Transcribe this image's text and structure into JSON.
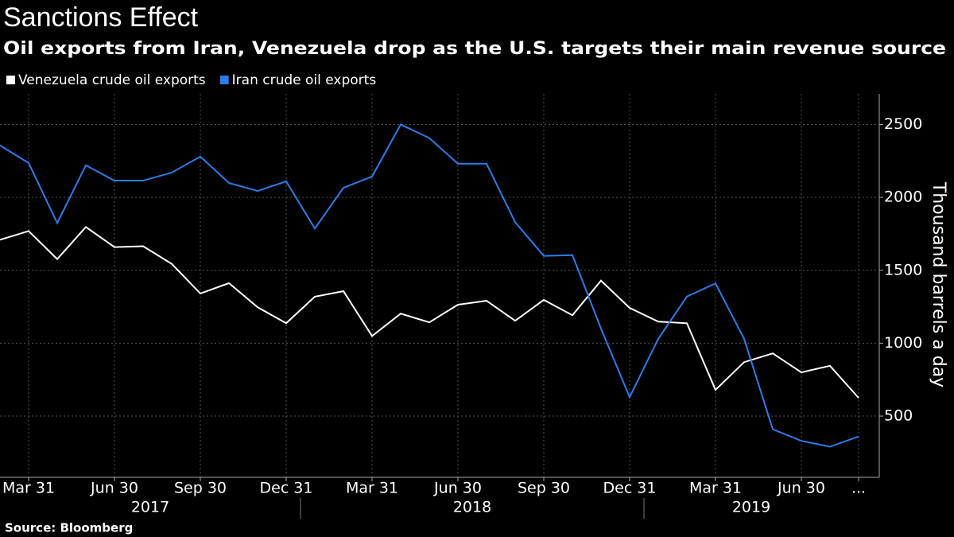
{
  "chart_data": {
    "type": "line",
    "title": "Sanctions Effect",
    "subtitle": "Oil exports from Iran, Venezuela drop as the U.S. targets their main revenue source",
    "y_label": "Thousand barrels a day",
    "source": "Source: Bloomberg",
    "categories": [
      null,
      "Mar 31",
      null,
      null,
      "Jun 30",
      null,
      null,
      "Sep 30",
      null,
      null,
      "Dec 31",
      null,
      null,
      "Mar 31",
      null,
      null,
      "Jun 30",
      null,
      null,
      "Sep 30",
      null,
      null,
      "Dec 31",
      null,
      null,
      "Mar 31",
      null,
      null,
      "Jun 30",
      null,
      "..."
    ],
    "year_labels": [
      "2017",
      "2018",
      "2019"
    ],
    "series": [
      {
        "name": "Venezuela crude oil exports",
        "color": "#ffffff",
        "values": [
          1709,
          1769,
          1577,
          1797,
          1659,
          1665,
          1544,
          1341,
          1412,
          1247,
          1137,
          1319,
          1357,
          1049,
          1203,
          1143,
          1264,
          1291,
          1154,
          1297,
          1192,
          1429,
          1242,
          1148,
          1137,
          680,
          870,
          930,
          800,
          845,
          625
        ]
      },
      {
        "name": "Iran crude oil exports",
        "color": "#2b7de9",
        "values": [
          2357,
          2236,
          1824,
          2220,
          2115,
          2115,
          2170,
          2280,
          2099,
          2044,
          2110,
          1786,
          2066,
          2143,
          2500,
          2407,
          2231,
          2231,
          1830,
          1599,
          1604,
          1100,
          630,
          1030,
          1320,
          1410,
          1030,
          410,
          330,
          290,
          360
        ]
      }
    ],
    "ylim": [
      80,
      2710
    ],
    "yticks": [
      500,
      1000,
      1500,
      2000,
      2500
    ],
    "grid": true,
    "legend": "top-left"
  }
}
